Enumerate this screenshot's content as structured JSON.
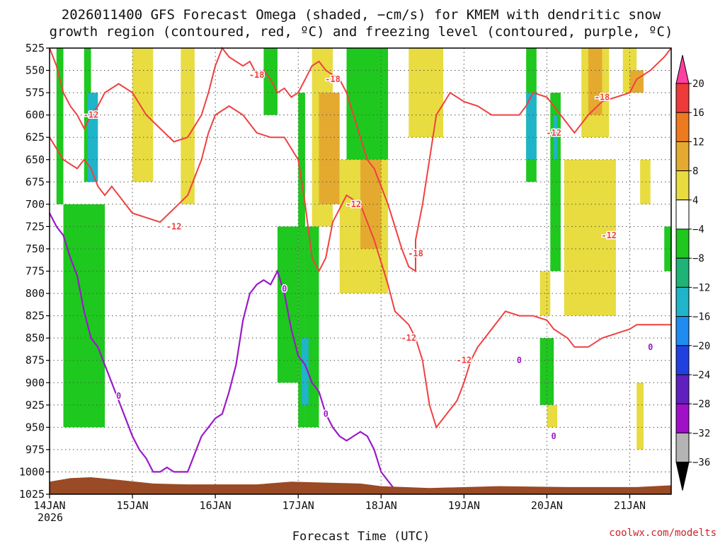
{
  "chart_data": {
    "type": "heatmap",
    "title": "2026011400 GFS Forecast Omega (shaded, −cm/s) for KMEM with dendritic snow",
    "subtitle": "growth region (contoured, red, ºC) and freezing level (contoured, purple, ºC)",
    "xlabel": "Forecast Time (UTC)",
    "credit": "coolwx.com/modelts",
    "y_ticks": [
      "525",
      "550",
      "575",
      "600",
      "625",
      "650",
      "675",
      "700",
      "725",
      "750",
      "775",
      "800",
      "825",
      "850",
      "875",
      "900",
      "925",
      "950",
      "975",
      "1000",
      "1025"
    ],
    "ylim": [
      1025,
      525
    ],
    "x_ticks": [
      "14JAN",
      "15JAN",
      "16JAN",
      "17JAN",
      "18JAN",
      "19JAN",
      "20JAN",
      "21JAN"
    ],
    "x_year": "2026",
    "x_hours": [
      0,
      24,
      48,
      72,
      96,
      120,
      144,
      168
    ],
    "xlim": [
      0,
      180
    ],
    "grid": true,
    "colorbar": {
      "labels": [
        "20",
        "16",
        "12",
        "8",
        "4",
        "−4",
        "−8",
        "−12",
        "−16",
        "−20",
        "−24",
        "−28",
        "−32",
        "−36"
      ],
      "colors": [
        "#ff40a0",
        "#ee3a3a",
        "#ee7a20",
        "#e4aa30",
        "#e8dc40",
        "#ffffff",
        "#1ec81e",
        "#1eb478",
        "#20b4c8",
        "#1e8cf0",
        "#2040e0",
        "#6020c0",
        "#a010c8",
        "#b4b4b4",
        "#000000"
      ]
    },
    "series": [
      {
        "name": "dendritic snow growth region, −12 ºC",
        "color": "#f04040",
        "labels": [
          "-12",
          "-12",
          "-12",
          "-12",
          "-12",
          "-12",
          "-12"
        ]
      },
      {
        "name": "dendritic snow growth region, −18 ºC",
        "color": "#f04040",
        "labels": [
          "-18",
          "-18",
          "-18",
          "-18"
        ]
      },
      {
        "name": "freezing level, 0 ºC",
        "color": "#9a1ac8",
        "labels": [
          "0",
          "0",
          "0",
          "0",
          "0",
          "0"
        ]
      }
    ],
    "omega_regions": [
      {
        "x0": 2,
        "x1": 4,
        "p0": 525,
        "p1": 700,
        "value": -6
      },
      {
        "x0": 10,
        "x1": 12,
        "p0": 525,
        "p1": 675,
        "value": -6
      },
      {
        "x0": 11,
        "x1": 14,
        "p0": 575,
        "p1": 675,
        "value": -14
      },
      {
        "x0": 4,
        "x1": 16,
        "p0": 700,
        "p1": 950,
        "value": -6
      },
      {
        "x0": 24,
        "x1": 30,
        "p0": 525,
        "p1": 675,
        "value": 5
      },
      {
        "x0": 38,
        "x1": 42,
        "p0": 575,
        "p1": 700,
        "value": 5
      },
      {
        "x0": 38,
        "x1": 42,
        "p0": 525,
        "p1": 600,
        "value": 5
      },
      {
        "x0": 66,
        "x1": 72,
        "p0": 725,
        "p1": 900,
        "value": -6
      },
      {
        "x0": 62,
        "x1": 66,
        "p0": 525,
        "p1": 600,
        "value": -6
      },
      {
        "x0": 72,
        "x1": 74,
        "p0": 575,
        "p1": 950,
        "value": -6
      },
      {
        "x0": 74,
        "x1": 78,
        "p0": 725,
        "p1": 950,
        "value": -6
      },
      {
        "x0": 73,
        "x1": 75,
        "p0": 850,
        "p1": 925,
        "value": -14
      },
      {
        "x0": 76,
        "x1": 82,
        "p0": 525,
        "p1": 725,
        "value": 5
      },
      {
        "x0": 78,
        "x1": 84,
        "p0": 575,
        "p1": 700,
        "value": 9
      },
      {
        "x0": 84,
        "x1": 98,
        "p0": 650,
        "p1": 800,
        "value": 5
      },
      {
        "x0": 86,
        "x1": 98,
        "p0": 525,
        "p1": 650,
        "value": -6
      },
      {
        "x0": 90,
        "x1": 96,
        "p0": 650,
        "p1": 750,
        "value": 9
      },
      {
        "x0": 104,
        "x1": 114,
        "p0": 525,
        "p1": 625,
        "value": 5
      },
      {
        "x0": 138,
        "x1": 141,
        "p0": 525,
        "p1": 675,
        "value": -6
      },
      {
        "x0": 138,
        "x1": 141,
        "p0": 575,
        "p1": 650,
        "value": -14
      },
      {
        "x0": 142,
        "x1": 145,
        "p0": 775,
        "p1": 825,
        "value": 5
      },
      {
        "x0": 142,
        "x1": 146,
        "p0": 850,
        "p1": 925,
        "value": -6
      },
      {
        "x0": 144,
        "x1": 147,
        "p0": 925,
        "p1": 950,
        "value": 5
      },
      {
        "x0": 145,
        "x1": 148,
        "p0": 575,
        "p1": 775,
        "value": -6
      },
      {
        "x0": 146,
        "x1": 147,
        "p0": 600,
        "p1": 650,
        "value": -14
      },
      {
        "x0": 149,
        "x1": 164,
        "p0": 650,
        "p1": 825,
        "value": 5
      },
      {
        "x0": 154,
        "x1": 162,
        "p0": 525,
        "p1": 625,
        "value": 5
      },
      {
        "x0": 156,
        "x1": 160,
        "p0": 525,
        "p1": 600,
        "value": 9
      },
      {
        "x0": 166,
        "x1": 170,
        "p0": 525,
        "p1": 575,
        "value": 5
      },
      {
        "x0": 168,
        "x1": 172,
        "p0": 550,
        "p1": 575,
        "value": 9
      },
      {
        "x0": 171,
        "x1": 174,
        "p0": 650,
        "p1": 700,
        "value": 5
      },
      {
        "x0": 170,
        "x1": 172,
        "p0": 900,
        "p1": 975,
        "value": 5
      },
      {
        "x0": 178,
        "x1": 180,
        "p0": 725,
        "p1": 775,
        "value": -6
      }
    ],
    "contours_time_pressure": {
      "dgz_upper": [
        [
          0,
          525
        ],
        [
          2,
          545
        ],
        [
          4,
          575
        ],
        [
          6,
          590
        ],
        [
          8,
          600
        ],
        [
          10,
          615
        ],
        [
          12,
          600
        ],
        [
          14,
          590
        ],
        [
          16,
          575
        ],
        [
          20,
          565
        ],
        [
          24,
          575
        ],
        [
          28,
          600
        ],
        [
          32,
          615
        ],
        [
          36,
          630
        ],
        [
          40,
          625
        ],
        [
          44,
          600
        ],
        [
          46,
          575
        ],
        [
          48,
          545
        ],
        [
          50,
          525
        ],
        [
          52,
          535
        ],
        [
          56,
          545
        ],
        [
          58,
          540
        ],
        [
          60,
          555
        ],
        [
          62,
          550
        ],
        [
          64,
          560
        ],
        [
          66,
          575
        ],
        [
          68,
          570
        ],
        [
          70,
          580
        ],
        [
          72,
          575
        ],
        [
          74,
          560
        ],
        [
          76,
          545
        ],
        [
          78,
          540
        ],
        [
          80,
          550
        ],
        [
          84,
          560
        ],
        [
          86,
          575
        ],
        [
          88,
          600
        ],
        [
          90,
          625
        ],
        [
          92,
          650
        ],
        [
          94,
          660
        ],
        [
          96,
          680
        ],
        [
          98,
          700
        ],
        [
          100,
          725
        ],
        [
          102,
          750
        ],
        [
          104,
          770
        ],
        [
          106,
          775
        ],
        [
          106,
          740
        ],
        [
          108,
          700
        ],
        [
          110,
          650
        ],
        [
          112,
          600
        ],
        [
          116,
          575
        ],
        [
          120,
          585
        ],
        [
          124,
          590
        ],
        [
          128,
          600
        ],
        [
          132,
          600
        ],
        [
          136,
          600
        ],
        [
          138,
          590
        ],
        [
          140,
          575
        ],
        [
          144,
          580
        ],
        [
          148,
          600
        ],
        [
          152,
          620
        ],
        [
          156,
          600
        ],
        [
          160,
          585
        ],
        [
          164,
          580
        ],
        [
          168,
          575
        ],
        [
          170,
          560
        ],
        [
          174,
          550
        ],
        [
          178,
          535
        ],
        [
          180,
          525
        ]
      ],
      "dgz_lower": [
        [
          0,
          625
        ],
        [
          4,
          650
        ],
        [
          8,
          660
        ],
        [
          10,
          650
        ],
        [
          12,
          660
        ],
        [
          14,
          680
        ],
        [
          16,
          690
        ],
        [
          18,
          680
        ],
        [
          20,
          690
        ],
        [
          24,
          710
        ],
        [
          28,
          715
        ],
        [
          32,
          720
        ],
        [
          36,
          705
        ],
        [
          40,
          690
        ],
        [
          44,
          650
        ],
        [
          46,
          620
        ],
        [
          48,
          600
        ],
        [
          52,
          590
        ],
        [
          56,
          600
        ],
        [
          60,
          620
        ],
        [
          64,
          625
        ],
        [
          68,
          625
        ],
        [
          72,
          650
        ],
        [
          74,
          700
        ],
        [
          76,
          760
        ],
        [
          78,
          775
        ],
        [
          80,
          760
        ],
        [
          82,
          720
        ],
        [
          86,
          690
        ],
        [
          90,
          700
        ],
        [
          94,
          740
        ],
        [
          98,
          790
        ],
        [
          100,
          820
        ],
        [
          104,
          835
        ],
        [
          106,
          850
        ],
        [
          108,
          875
        ],
        [
          110,
          925
        ],
        [
          112,
          950
        ],
        [
          116,
          930
        ],
        [
          118,
          920
        ],
        [
          120,
          900
        ],
        [
          122,
          875
        ],
        [
          124,
          860
        ],
        [
          126,
          850
        ],
        [
          128,
          840
        ],
        [
          130,
          830
        ],
        [
          132,
          820
        ],
        [
          136,
          825
        ],
        [
          140,
          825
        ],
        [
          144,
          830
        ],
        [
          146,
          840
        ],
        [
          150,
          850
        ],
        [
          152,
          860
        ],
        [
          156,
          860
        ],
        [
          160,
          850
        ],
        [
          164,
          845
        ],
        [
          168,
          840
        ],
        [
          170,
          835
        ],
        [
          174,
          835
        ],
        [
          178,
          835
        ],
        [
          180,
          835
        ]
      ],
      "freezing": [
        [
          0,
          710
        ],
        [
          2,
          725
        ],
        [
          4,
          735
        ],
        [
          6,
          760
        ],
        [
          8,
          780
        ],
        [
          10,
          820
        ],
        [
          12,
          850
        ],
        [
          14,
          860
        ],
        [
          16,
          880
        ],
        [
          18,
          900
        ],
        [
          20,
          920
        ],
        [
          22,
          940
        ],
        [
          24,
          960
        ],
        [
          26,
          975
        ],
        [
          28,
          985
        ],
        [
          30,
          1000
        ],
        [
          32,
          1000
        ],
        [
          34,
          995
        ],
        [
          36,
          1000
        ],
        [
          40,
          1000
        ],
        [
          44,
          960
        ],
        [
          46,
          950
        ],
        [
          48,
          940
        ],
        [
          50,
          935
        ],
        [
          52,
          910
        ],
        [
          54,
          880
        ],
        [
          56,
          830
        ],
        [
          58,
          800
        ],
        [
          60,
          790
        ],
        [
          62,
          785
        ],
        [
          64,
          790
        ],
        [
          66,
          775
        ],
        [
          68,
          800
        ],
        [
          70,
          840
        ],
        [
          72,
          870
        ],
        [
          74,
          880
        ],
        [
          76,
          900
        ],
        [
          78,
          910
        ],
        [
          80,
          935
        ],
        [
          82,
          950
        ],
        [
          84,
          960
        ],
        [
          86,
          965
        ],
        [
          88,
          960
        ],
        [
          90,
          955
        ],
        [
          92,
          960
        ],
        [
          94,
          975
        ],
        [
          96,
          1000
        ],
        [
          98,
          1010
        ],
        [
          100,
          1020
        ],
        [
          102,
          1025
        ]
      ]
    }
  }
}
